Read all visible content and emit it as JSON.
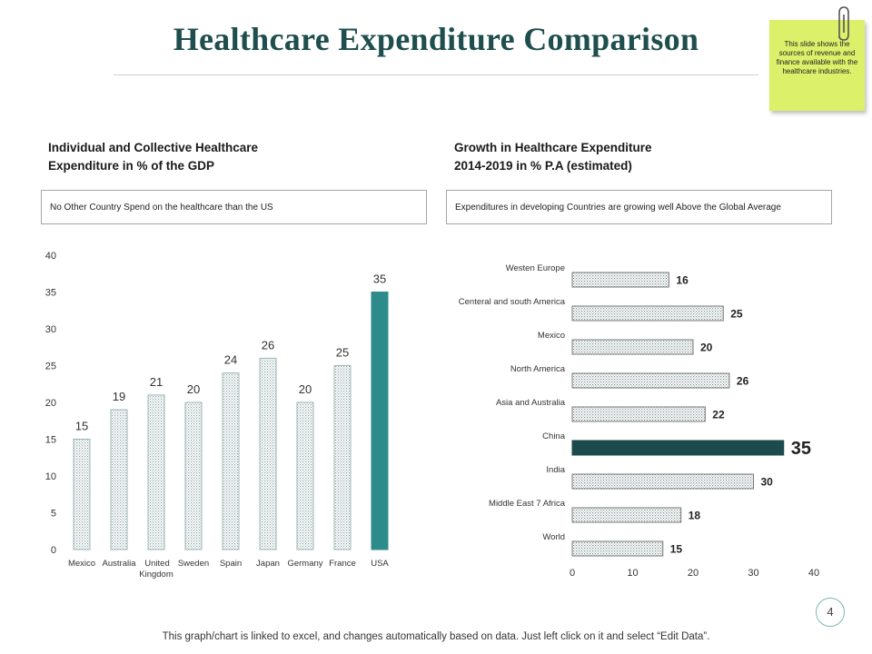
{
  "slide": {
    "title": "Healthcare Expenditure Comparison",
    "sticky_note": "This slide shows the sources of revenue and finance available with the healthcare industries.",
    "page_number": "4",
    "footer": "This graph/chart is linked to excel, and changes automatically based on data. Just left click on it and select “Edit Data”."
  },
  "left_panel": {
    "heading_line1": "Individual  and Collective Healthcare",
    "heading_line2": "Expenditure in % of the GDP",
    "callout": "No Other Country Spend on the healthcare than the US"
  },
  "right_panel": {
    "heading_line1": "Growth in Healthcare Expenditure",
    "heading_line2": "2014-2019 in % P.A (estimated)",
    "callout": "Expenditures in developing Countries are growing well Above the Global Average"
  },
  "colors": {
    "title": "#1f4e4e",
    "usa_bar": "#2e8b8b",
    "china_bar": "#1d4a4a",
    "dotted_bar": "#9fb5b5"
  },
  "chart_data": [
    {
      "type": "bar",
      "orientation": "vertical",
      "title": "Individual and Collective Healthcare Expenditure in % of the GDP",
      "categories": [
        "Mexico",
        "Australia",
        "United Kingdom",
        "Sweden",
        "Spain",
        "Japan",
        "Germany",
        "France",
        "USA"
      ],
      "category_lines": [
        [
          "Mexico"
        ],
        [
          "Australia"
        ],
        [
          "United",
          "Kingdom"
        ],
        [
          "Sweden"
        ],
        [
          "Spain"
        ],
        [
          "Japan"
        ],
        [
          "Germany"
        ],
        [
          "France"
        ],
        [
          "USA"
        ]
      ],
      "values": [
        15,
        19,
        21,
        20,
        24,
        26,
        20,
        25,
        35
      ],
      "highlight": "USA",
      "ylim": [
        0,
        40
      ],
      "yticks": [
        0,
        5,
        10,
        15,
        20,
        25,
        30,
        35,
        40
      ],
      "xlabel": "",
      "ylabel": ""
    },
    {
      "type": "bar",
      "orientation": "horizontal",
      "title": "Growth in Healthcare Expenditure 2014-2019 in % P.A (estimated)",
      "categories": [
        "Westen Europe",
        "Centeral and south America",
        "Mexico",
        "North America",
        "Asia and Australia",
        "China",
        "India",
        "Middle East 7 Africa",
        "World"
      ],
      "values": [
        16,
        25,
        20,
        26,
        22,
        35,
        30,
        18,
        15
      ],
      "highlight": "China",
      "xlim": [
        0,
        40
      ],
      "xticks": [
        0,
        10,
        20,
        30,
        40
      ],
      "xlabel": "",
      "ylabel": ""
    }
  ]
}
